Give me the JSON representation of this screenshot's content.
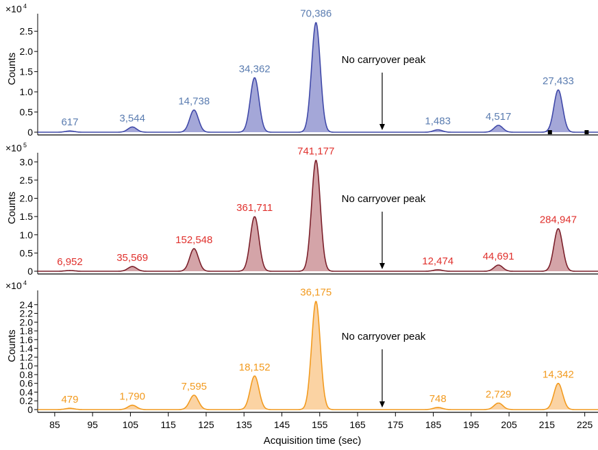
{
  "chart_data": [
    {
      "type": "area",
      "ylabel": "Counts",
      "scale_label": "×10",
      "scale_exponent": "4",
      "ylim": [
        0,
        2.8
      ],
      "yticks": [
        "0",
        "0.5",
        "1.0",
        "1.5",
        "2.0",
        "2.5"
      ],
      "ytick_values": [
        0,
        0.5,
        1.0,
        1.5,
        2.0,
        2.5
      ],
      "color": "#3f48a8",
      "fill": "#a4a7d8",
      "label_color": "#5a7cb0",
      "annotation": "No carryover peak",
      "peaks": [
        {
          "x": 89,
          "height": 0.03,
          "label": "617"
        },
        {
          "x": 105.5,
          "height": 0.13,
          "label": "3,544"
        },
        {
          "x": 121.8,
          "height": 0.55,
          "label": "14,738"
        },
        {
          "x": 137.8,
          "height": 1.35,
          "label": "34,362"
        },
        {
          "x": 154,
          "height": 2.72,
          "label": "70,386"
        },
        {
          "x": 186.2,
          "height": 0.06,
          "label": "1,483"
        },
        {
          "x": 202.2,
          "height": 0.17,
          "label": "4,517"
        },
        {
          "x": 218,
          "height": 1.05,
          "label": "27,433"
        }
      ]
    },
    {
      "type": "area",
      "ylabel": "Counts",
      "scale_label": "×10",
      "scale_exponent": "5",
      "ylim": [
        0,
        3.1
      ],
      "yticks": [
        "0",
        "0.5",
        "1.0",
        "1.5",
        "2.0",
        "2.5",
        "3.0"
      ],
      "ytick_values": [
        0,
        0.5,
        1.0,
        1.5,
        2.0,
        2.5,
        3.0
      ],
      "color": "#7a1f2a",
      "fill": "#d4a4a8",
      "label_color": "#e0302c",
      "annotation": "No carryover peak",
      "peaks": [
        {
          "x": 89,
          "height": 0.02,
          "label": "6,952"
        },
        {
          "x": 105.5,
          "height": 0.13,
          "label": "35,569"
        },
        {
          "x": 121.8,
          "height": 0.62,
          "label": "152,548"
        },
        {
          "x": 137.8,
          "height": 1.5,
          "label": "361,711"
        },
        {
          "x": 154,
          "height": 3.05,
          "label": "741,177"
        },
        {
          "x": 186.2,
          "height": 0.04,
          "label": "12,474"
        },
        {
          "x": 202.2,
          "height": 0.17,
          "label": "44,691"
        },
        {
          "x": 218,
          "height": 1.17,
          "label": "284,947"
        }
      ]
    },
    {
      "type": "area",
      "ylabel": "Counts",
      "xlabel": "Acquisition time (sec)",
      "scale_label": "×10",
      "scale_exponent": "4",
      "ylim": [
        0,
        2.6
      ],
      "yticks": [
        "0",
        "0.2",
        "0.4",
        "0.6",
        "0.8",
        "1.0",
        "1.2",
        "1.4",
        "1.6",
        "1.8",
        "2.0",
        "2.2",
        "2.4"
      ],
      "ytick_values": [
        0,
        0.2,
        0.4,
        0.6,
        0.8,
        1.0,
        1.2,
        1.4,
        1.6,
        1.8,
        2.0,
        2.2,
        2.4
      ],
      "color": "#f29a1e",
      "fill": "#fbd3a3",
      "label_color": "#f29a1e",
      "annotation": "No carryover peak",
      "xticks": [
        "85",
        "95",
        "105",
        "115",
        "125",
        "135",
        "145",
        "155",
        "165",
        "175",
        "185",
        "195",
        "205",
        "215",
        "225"
      ],
      "xtick_values": [
        85,
        95,
        105,
        115,
        125,
        135,
        145,
        155,
        165,
        175,
        185,
        195,
        205,
        215,
        225
      ],
      "xlim": [
        80.5,
        228.5
      ],
      "peaks": [
        {
          "x": 89,
          "height": 0.03,
          "label": "479"
        },
        {
          "x": 105.5,
          "height": 0.1,
          "label": "1,790"
        },
        {
          "x": 121.8,
          "height": 0.33,
          "label": "7,595"
        },
        {
          "x": 137.8,
          "height": 0.77,
          "label": "18,152"
        },
        {
          "x": 154,
          "height": 2.48,
          "label": "36,175"
        },
        {
          "x": 186.2,
          "height": 0.05,
          "label": "748"
        },
        {
          "x": 202.2,
          "height": 0.15,
          "label": "2,729"
        },
        {
          "x": 218,
          "height": 0.6,
          "label": "14,342"
        }
      ]
    }
  ]
}
